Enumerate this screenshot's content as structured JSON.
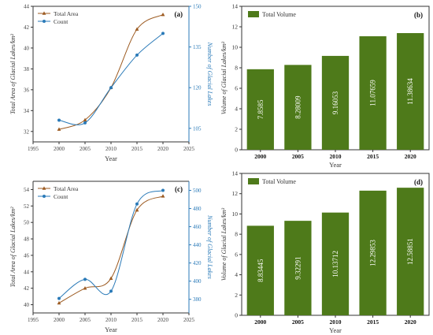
{
  "chart_data": [
    {
      "type": "line",
      "panel_label": "(a)",
      "xlabel": "Year",
      "ylabel": "Total Area of Glacial Lakes/km²",
      "y2label": "Number of Glacial Lakes",
      "xlim": [
        1995,
        2025
      ],
      "xticks": [
        1995,
        2000,
        2005,
        2010,
        2015,
        2020,
        2025
      ],
      "ylim": [
        31,
        44
      ],
      "yticks": [
        32,
        34,
        36,
        38,
        40,
        42,
        44
      ],
      "y2lim": [
        100,
        150
      ],
      "y2ticks": [
        105,
        120,
        135,
        150
      ],
      "legend_position": "top-left",
      "series": [
        {
          "name": "Total Area",
          "axis": "left",
          "color": "#9c5a20",
          "marker": "triangle",
          "x": [
            2000,
            2005,
            2010,
            2015,
            2020
          ],
          "y": [
            32.2,
            33.1,
            36.2,
            41.8,
            43.2
          ]
        },
        {
          "name": "Count",
          "axis": "right",
          "color": "#2a7ab8",
          "marker": "circle",
          "x": [
            2000,
            2005,
            2010,
            2015,
            2020
          ],
          "y": [
            108,
            107,
            120,
            132,
            140
          ]
        }
      ]
    },
    {
      "type": "bar",
      "panel_label": "(b)",
      "xlabel": "Year",
      "ylabel": "Volume of Glacial Lakes/km³",
      "legend": "Total Volume",
      "legend_position": "top-left",
      "color": "#4e7a1a",
      "categories": [
        "2000",
        "2005",
        "2010",
        "2015",
        "2020"
      ],
      "values": [
        7.8585,
        8.28009,
        9.16053,
        11.07659,
        11.38634
      ],
      "ylim": [
        0,
        14
      ],
      "yticks": [
        0,
        2,
        4,
        6,
        8,
        10,
        12,
        14
      ]
    },
    {
      "type": "line",
      "panel_label": "(c)",
      "xlabel": "Year",
      "ylabel": "Total Area of Glacial Lakes/km²",
      "y2label": "Number of Glacial Lakes",
      "xlim": [
        1995,
        2025
      ],
      "xticks": [
        1995,
        2000,
        2005,
        2010,
        2015,
        2020,
        2025
      ],
      "ylim": [
        39,
        55
      ],
      "yticks": [
        40,
        42,
        44,
        46,
        48,
        50,
        52,
        54
      ],
      "y2lim": [
        365,
        510
      ],
      "y2ticks": [
        380,
        400,
        420,
        440,
        460,
        480,
        500
      ],
      "legend_position": "top-left",
      "series": [
        {
          "name": "Total Area",
          "axis": "left",
          "color": "#9c5a20",
          "marker": "triangle",
          "x": [
            2000,
            2005,
            2010,
            2015,
            2020
          ],
          "y": [
            40.2,
            42.0,
            43.2,
            51.5,
            53.2
          ]
        },
        {
          "name": "Count",
          "axis": "right",
          "color": "#2a7ab8",
          "marker": "circle",
          "x": [
            2000,
            2005,
            2010,
            2015,
            2020
          ],
          "y": [
            381,
            402,
            389,
            485,
            500
          ]
        }
      ]
    },
    {
      "type": "bar",
      "panel_label": "(d)",
      "xlabel": "Year",
      "ylabel": "Volume of Glacial Lakes/km³",
      "legend": "Total Volume",
      "legend_position": "top-left",
      "color": "#4e7a1a",
      "categories": [
        "2000",
        "2005",
        "2010",
        "2015",
        "2020"
      ],
      "values": [
        8.83445,
        9.32291,
        10.13712,
        12.29853,
        12.58851
      ],
      "ylim": [
        0,
        14
      ],
      "yticks": [
        0,
        2,
        4,
        6,
        8,
        10,
        12,
        14
      ]
    }
  ]
}
